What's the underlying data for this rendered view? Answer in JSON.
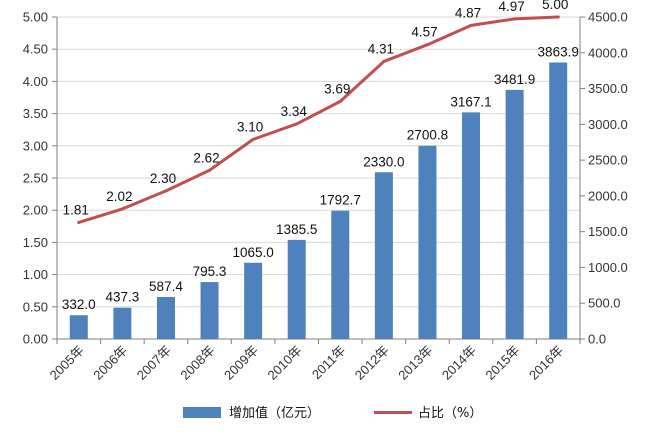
{
  "chart_data": {
    "type": "bar",
    "categories": [
      "2005年",
      "2006年",
      "2007年",
      "2008年",
      "2009年",
      "2010年",
      "2011年",
      "2012年",
      "2013年",
      "2014年",
      "2015年",
      "2016年"
    ],
    "series": [
      {
        "name": "增加值（亿元）",
        "type": "bar",
        "axis": "right",
        "color": "#4f81bd",
        "values": [
          332.0,
          437.3,
          587.4,
          795.3,
          1065.0,
          1385.5,
          1792.7,
          2330.0,
          2700.8,
          3167.1,
          3481.9,
          3863.9
        ],
        "labels": [
          "332.0",
          "437.3",
          "587.4",
          "795.3",
          "1065.0",
          "1385.5",
          "1792.7",
          "2330.0",
          "2700.8",
          "3167.1",
          "3481.9",
          "3863.9"
        ]
      },
      {
        "name": "占比（%）",
        "type": "line",
        "axis": "left",
        "color": "#c0504d",
        "values": [
          1.81,
          2.02,
          2.3,
          2.62,
          3.1,
          3.34,
          3.69,
          4.31,
          4.57,
          4.87,
          4.97,
          5.0
        ],
        "labels": [
          "1.81",
          "2.02",
          "2.30",
          "2.62",
          "3.10",
          "3.34",
          "3.69",
          "4.31",
          "4.57",
          "4.87",
          "4.97",
          "5.00"
        ]
      }
    ],
    "left_axis": {
      "ylim": [
        0,
        5
      ],
      "ticks": [
        "0.00",
        "0.50",
        "1.00",
        "1.50",
        "2.00",
        "2.50",
        "3.00",
        "3.50",
        "4.00",
        "4.50",
        "5.00"
      ]
    },
    "right_axis": {
      "ylim": [
        0,
        4500
      ],
      "ticks": [
        "0.0",
        "500.0",
        "1000.0",
        "1500.0",
        "2000.0",
        "2500.0",
        "3000.0",
        "3500.0",
        "4000.0",
        "4500.0"
      ]
    },
    "grid": true,
    "legend": "bottom"
  }
}
